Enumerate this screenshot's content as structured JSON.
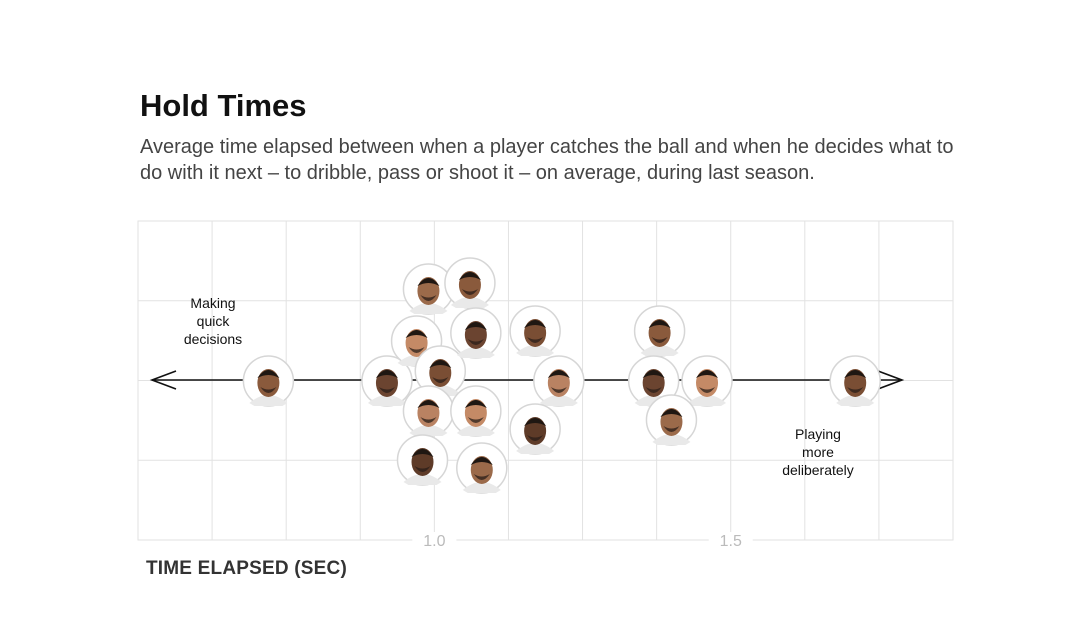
{
  "chart_data": {
    "type": "scatter",
    "title": "Hold Times",
    "subtitle": "Average time elapsed between when a player catches the ball and when he decides what to do with it next – to dribble, pass or shoot it – on average, during last season.",
    "xlabel": "TIME ELAPSED (SEC)",
    "ylabel": "",
    "xlim": [
      0.5,
      1.875
    ],
    "x_ticks": [
      {
        "value": 1.0,
        "label": "1.0"
      },
      {
        "value": 1.5,
        "label": "1.5"
      }
    ],
    "grid": true,
    "annotations": {
      "left": [
        "Making",
        "quick",
        "decisions"
      ],
      "right": [
        "Playing",
        "more",
        "deliberately"
      ]
    },
    "points": [
      {
        "x": 0.72
      },
      {
        "x": 0.92
      },
      {
        "x": 0.97
      },
      {
        "x": 0.99
      },
      {
        "x": 1.01
      },
      {
        "x": 0.99
      },
      {
        "x": 0.98
      },
      {
        "x": 1.06
      },
      {
        "x": 1.07
      },
      {
        "x": 1.07
      },
      {
        "x": 1.08
      },
      {
        "x": 1.17
      },
      {
        "x": 1.21
      },
      {
        "x": 1.17
      },
      {
        "x": 1.38
      },
      {
        "x": 1.37
      },
      {
        "x": 1.46
      },
      {
        "x": 1.4
      },
      {
        "x": 1.71
      }
    ],
    "colors": {
      "grid": "#e2e2e2",
      "axis_arrow": "#111111",
      "face_border": "#d6d6d6"
    }
  }
}
